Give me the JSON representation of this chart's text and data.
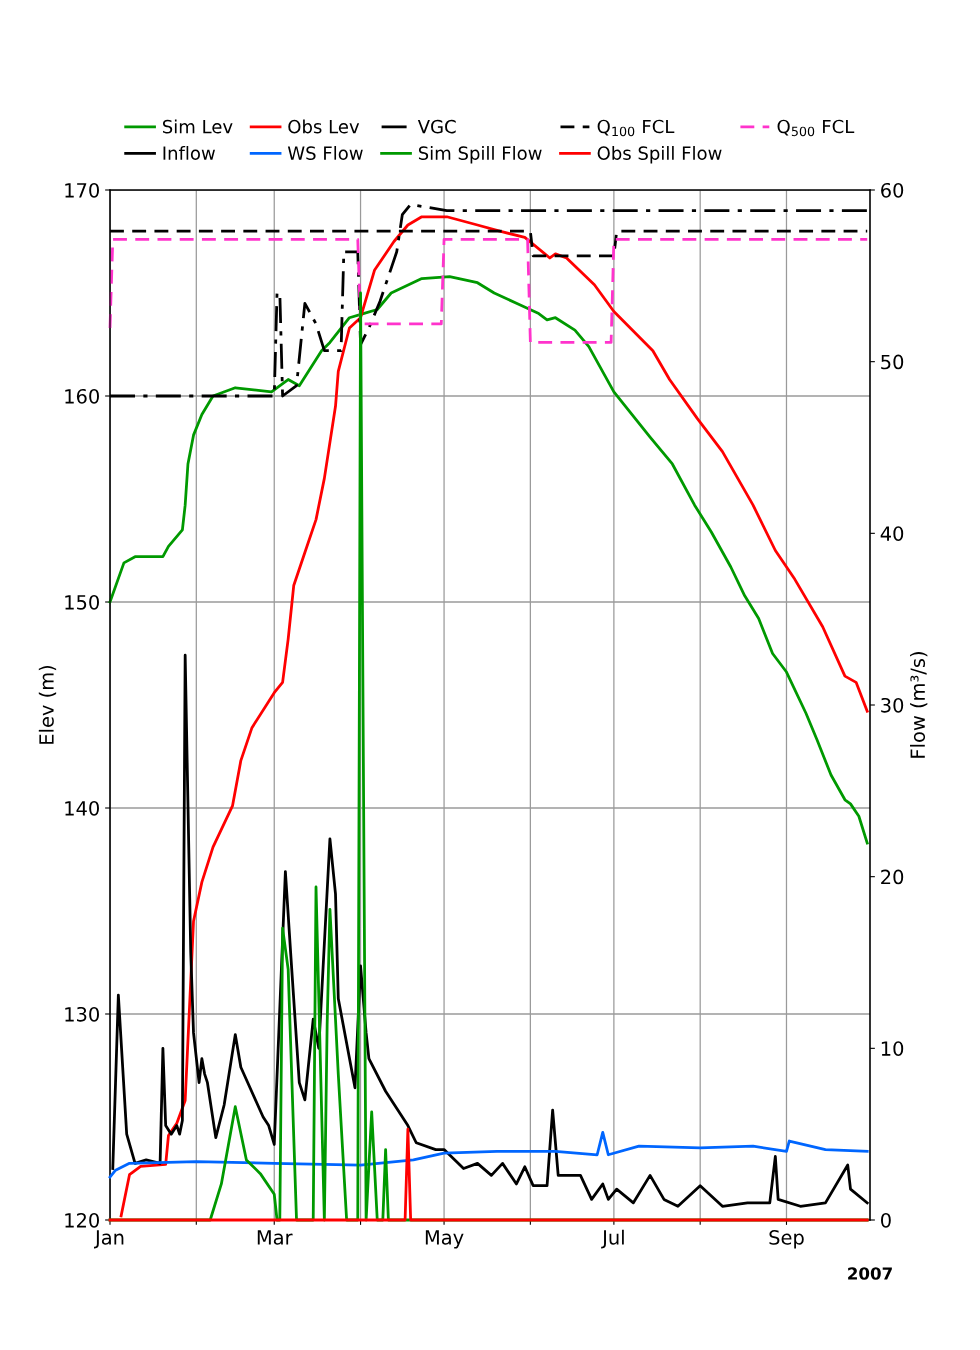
{
  "chart_data": {
    "type": "line",
    "ylabel": "Elev (m)",
    "y2label": "Flow (m³/s)",
    "annotations": [
      "2007"
    ],
    "xlim": [
      "2007-01-01",
      "2007-10-01"
    ],
    "xticks": [
      {
        "value": "2007-01-01",
        "label": "Jan"
      },
      {
        "value": "2007-02-01",
        "label": null
      },
      {
        "value": "2007-03-01",
        "label": "Mar"
      },
      {
        "value": "2007-04-01",
        "label": null
      },
      {
        "value": "2007-05-01",
        "label": "May"
      },
      {
        "value": "2007-06-01",
        "label": null
      },
      {
        "value": "2007-07-01",
        "label": "Jul"
      },
      {
        "value": "2007-08-01",
        "label": null
      },
      {
        "value": "2007-09-01",
        "label": "Sep"
      }
    ],
    "ylim": [
      120,
      170
    ],
    "yticks": [
      120,
      130,
      140,
      150,
      160,
      170
    ],
    "y2lim": [
      0,
      60
    ],
    "y2ticks": [
      0,
      10,
      20,
      30,
      40,
      50,
      60
    ],
    "grid": true,
    "legend": "top",
    "series": [
      {
        "name": "Sim Lev",
        "color": "#009900",
        "line_style": "solid",
        "x": [
          "2007-01-01",
          "2007-01-06",
          "2007-01-10",
          "2007-01-20",
          "2007-01-22",
          "2007-01-27",
          "2007-01-28",
          "2007-01-29",
          "2007-01-31",
          "2007-02-03",
          "2007-02-07",
          "2007-02-15",
          "2007-02-28",
          "2007-03-06",
          "2007-03-10",
          "2007-03-18",
          "2007-03-21",
          "2007-03-28",
          "2007-04-02",
          "2007-04-07",
          "2007-04-12",
          "2007-04-23",
          "2007-05-03",
          "2007-05-13",
          "2007-05-19",
          "2007-05-27",
          "2007-06-04",
          "2007-06-07",
          "2007-06-10",
          "2007-06-17",
          "2007-06-22",
          "2007-07-01",
          "2007-07-14",
          "2007-07-22",
          "2007-07-30",
          "2007-08-05",
          "2007-08-12",
          "2007-08-17",
          "2007-08-22",
          "2007-08-27",
          "2007-09-01",
          "2007-09-08",
          "2007-09-12",
          "2007-09-17",
          "2007-09-22",
          "2007-09-24",
          "2007-09-27",
          "2007-09-30"
        ],
        "values": [
          150.0,
          151.9,
          152.2,
          152.2,
          152.7,
          153.5,
          154.7,
          156.7,
          158.1,
          159.1,
          160.0,
          160.4,
          160.2,
          160.8,
          160.5,
          162.2,
          162.6,
          163.8,
          164.0,
          164.2,
          165.0,
          165.7,
          165.8,
          165.5,
          165.0,
          164.5,
          164.0,
          163.7,
          163.8,
          163.2,
          162.4,
          160.2,
          158.0,
          156.7,
          154.7,
          153.4,
          151.7,
          150.3,
          149.2,
          147.5,
          146.6,
          144.6,
          143.3,
          141.6,
          140.4,
          140.2,
          139.6,
          138.3
        ]
      },
      {
        "name": "Inflow",
        "color": "#000000",
        "line_style": "solid",
        "axis": "y2",
        "x": [
          "2007-01-02",
          "2007-01-04",
          "2007-01-07",
          "2007-01-10",
          "2007-01-14",
          "2007-01-19",
          "2007-01-20",
          "2007-01-21",
          "2007-01-23",
          "2007-01-25",
          "2007-01-26",
          "2007-01-27",
          "2007-01-28",
          "2007-01-30",
          "2007-01-31",
          "2007-02-02",
          "2007-02-03",
          "2007-02-04",
          "2007-02-05",
          "2007-02-08",
          "2007-02-11",
          "2007-02-15",
          "2007-02-17",
          "2007-02-25",
          "2007-02-27",
          "2007-03-01",
          "2007-03-05",
          "2007-03-07",
          "2007-03-10",
          "2007-03-12",
          "2007-03-15",
          "2007-03-17",
          "2007-03-21",
          "2007-03-23",
          "2007-03-24",
          "2007-03-30",
          "2007-04-01",
          "2007-04-03",
          "2007-04-04",
          "2007-04-10",
          "2007-04-18",
          "2007-04-21",
          "2007-04-28",
          "2007-05-01",
          "2007-05-08",
          "2007-05-13",
          "2007-05-18",
          "2007-05-22",
          "2007-05-27",
          "2007-05-30",
          "2007-06-02",
          "2007-06-07",
          "2007-06-09",
          "2007-06-11",
          "2007-06-19",
          "2007-06-23",
          "2007-06-27",
          "2007-06-29",
          "2007-07-02",
          "2007-07-08",
          "2007-07-14",
          "2007-07-19",
          "2007-07-24",
          "2007-08-01",
          "2007-08-09",
          "2007-08-18",
          "2007-08-26",
          "2007-08-28",
          "2007-08-29",
          "2007-09-06",
          "2007-09-15",
          "2007-09-23",
          "2007-09-24",
          "2007-09-30"
        ],
        "values": [
          3.0,
          13.1,
          5.0,
          3.3,
          3.5,
          3.3,
          10.0,
          5.5,
          5.0,
          5.5,
          5.0,
          5.8,
          32.9,
          15.6,
          10.9,
          8.0,
          9.4,
          8.5,
          8.0,
          4.8,
          6.7,
          10.8,
          8.9,
          6.0,
          5.5,
          4.4,
          20.3,
          15.3,
          8.0,
          7.0,
          11.7,
          10.0,
          22.2,
          19.0,
          12.9,
          7.7,
          14.8,
          10.9,
          9.4,
          7.5,
          5.5,
          4.5,
          4.1,
          4.1,
          3.0,
          3.3,
          2.6,
          3.3,
          2.1,
          3.1,
          2.0,
          2.0,
          6.4,
          2.6,
          2.6,
          1.2,
          2.1,
          1.2,
          1.8,
          1.0,
          2.6,
          1.2,
          0.8,
          2.0,
          0.8,
          1.0,
          1.0,
          3.7,
          1.2,
          0.8,
          1.0,
          3.2,
          1.8,
          1.0
        ]
      },
      {
        "name": "Obs Lev",
        "color": "#ff0000",
        "line_style": "solid",
        "x": [
          "2007-01-05",
          "2007-01-08",
          "2007-01-12",
          "2007-01-21",
          "2007-01-22",
          "2007-01-25",
          "2007-01-28",
          "2007-01-31",
          "2007-02-03",
          "2007-02-07",
          "2007-02-14",
          "2007-02-17",
          "2007-02-21",
          "2007-03-01",
          "2007-03-04",
          "2007-03-06",
          "2007-03-08",
          "2007-03-12",
          "2007-03-16",
          "2007-03-19",
          "2007-03-23",
          "2007-03-24",
          "2007-03-28",
          "2007-04-01",
          "2007-04-06",
          "2007-04-13",
          "2007-04-18",
          "2007-04-23",
          "2007-05-02",
          "2007-05-13",
          "2007-05-21",
          "2007-05-30",
          "2007-06-08",
          "2007-06-10",
          "2007-06-14",
          "2007-06-24",
          "2007-07-01",
          "2007-07-15",
          "2007-07-21",
          "2007-07-31",
          "2007-08-09",
          "2007-08-20",
          "2007-08-28",
          "2007-09-04",
          "2007-09-14",
          "2007-09-22",
          "2007-09-26",
          "2007-09-30"
        ],
        "values": [
          120.2,
          122.2,
          122.6,
          122.7,
          124.1,
          124.7,
          125.8,
          134.5,
          136.4,
          138.1,
          140.1,
          142.3,
          143.9,
          145.6,
          146.1,
          148.2,
          150.8,
          152.4,
          154.0,
          156.0,
          159.5,
          161.2,
          163.3,
          163.8,
          166.1,
          167.5,
          168.3,
          168.7,
          168.7,
          168.3,
          168.0,
          167.7,
          166.7,
          166.9,
          166.7,
          165.4,
          164.1,
          162.2,
          160.8,
          158.9,
          157.3,
          154.7,
          152.5,
          151.1,
          148.8,
          146.4,
          146.1,
          144.7
        ]
      },
      {
        "name": "WS Flow",
        "color": "#0066ff",
        "line_style": "solid",
        "axis": "y2",
        "x": [
          "2007-01-01",
          "2007-01-03",
          "2007-01-08",
          "2007-02-01",
          "2007-03-01",
          "2007-04-01",
          "2007-04-20",
          "2007-05-01",
          "2007-05-20",
          "2007-06-10",
          "2007-06-25",
          "2007-06-27",
          "2007-06-29",
          "2007-07-10",
          "2007-08-01",
          "2007-08-20",
          "2007-09-01",
          "2007-09-02",
          "2007-09-15",
          "2007-09-30"
        ],
        "values": [
          2.5,
          2.9,
          3.3,
          3.4,
          3.3,
          3.2,
          3.5,
          3.9,
          4.0,
          4.0,
          3.8,
          5.1,
          3.8,
          4.3,
          4.2,
          4.3,
          4.0,
          4.6,
          4.1,
          4.0
        ]
      },
      {
        "name": "VGC",
        "color": "#000000",
        "line_style": "dashdot",
        "x": [
          "2007-01-01",
          "2007-03-01",
          "2007-03-02",
          "2007-03-03",
          "2007-03-04",
          "2007-03-09",
          "2007-03-12",
          "2007-03-16",
          "2007-03-19",
          "2007-03-25",
          "2007-03-26",
          "2007-03-31",
          "2007-04-01",
          "2007-04-04",
          "2007-04-08",
          "2007-04-14",
          "2007-04-16",
          "2007-04-19",
          "2007-05-02",
          "2007-09-30"
        ],
        "values": [
          160.0,
          160.0,
          165.0,
          165.0,
          160.0,
          160.5,
          164.5,
          163.5,
          162.2,
          162.2,
          167.0,
          167.0,
          162.5,
          163.3,
          164.6,
          167.0,
          168.8,
          169.3,
          169.0,
          169.0
        ]
      },
      {
        "name": "Sim Spill Flow",
        "color": "#009900",
        "line_style": "solid",
        "axis": "y2",
        "x": [
          "2007-01-01",
          "2007-02-06",
          "2007-02-10",
          "2007-02-15",
          "2007-02-19",
          "2007-02-24",
          "2007-03-01",
          "2007-03-02",
          "2007-03-03",
          "2007-03-04",
          "2007-03-06",
          "2007-03-09",
          "2007-03-15",
          "2007-03-16",
          "2007-03-19",
          "2007-03-20",
          "2007-03-21",
          "2007-03-24",
          "2007-03-27",
          "2007-03-31",
          "2007-04-01",
          "2007-04-03",
          "2007-04-05",
          "2007-04-07",
          "2007-04-09",
          "2007-04-10",
          "2007-04-11",
          "2007-09-30"
        ],
        "values": [
          0,
          0,
          2.1,
          6.6,
          3.5,
          2.7,
          1.5,
          0,
          0,
          17.0,
          14.6,
          0,
          0,
          19.4,
          0,
          11.4,
          18.1,
          8.5,
          0,
          0,
          54.0,
          0,
          6.3,
          0,
          0,
          4.1,
          0,
          0
        ]
      },
      {
        "name": "Q$_{100}$ FCL",
        "color": "#000000",
        "line_style": "dashed",
        "x": [
          "2007-01-01",
          "2007-06-01",
          "2007-06-02",
          "2007-07-01",
          "2007-07-02",
          "2007-09-30"
        ],
        "values": [
          168.0,
          168.0,
          166.8,
          166.8,
          168.0,
          168.0
        ]
      },
      {
        "name": "Obs Spill Flow",
        "color": "#ff0000",
        "line_style": "solid",
        "axis": "y2",
        "x": [
          "2007-01-01",
          "2007-04-17",
          "2007-04-18",
          "2007-04-19",
          "2007-09-30"
        ],
        "values": [
          0,
          0,
          5.3,
          0,
          0
        ]
      },
      {
        "name": "Q$_{500}$ FCL",
        "color": "#ff33cc",
        "line_style": "dashed",
        "x": [
          "2007-01-01",
          "2007-01-02",
          "2007-03-31",
          "2007-04-01",
          "2007-04-30",
          "2007-05-01",
          "2007-05-31",
          "2007-06-01",
          "2007-06-30",
          "2007-07-01",
          "2007-09-30"
        ],
        "values": [
          163.3,
          167.6,
          167.6,
          163.5,
          163.5,
          167.6,
          167.6,
          162.6,
          162.6,
          167.6,
          167.6
        ]
      }
    ]
  }
}
